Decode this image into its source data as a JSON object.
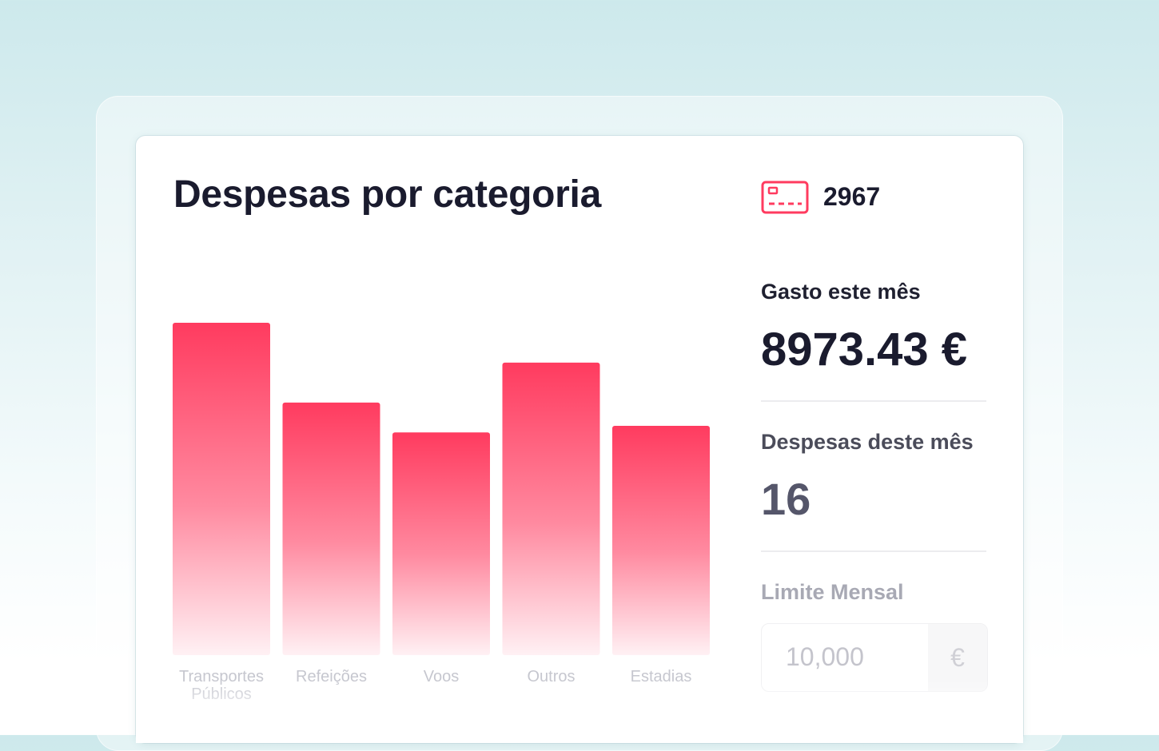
{
  "widget": {
    "title": "Despesas por categoria"
  },
  "cards": {
    "icon": "credit-card-icon",
    "count": "2967"
  },
  "stats": {
    "spent_label": "Gasto este mês",
    "spent_value": "8973.43 €",
    "expenses_label": "Despesas deste mês",
    "expenses_value": "16",
    "limit_label": "Limite Mensal",
    "limit_value": "10,000",
    "limit_currency": "€"
  },
  "colors": {
    "accent": "#ff3b5f",
    "accent_light": "#ffe9ee",
    "text_dark": "#1a1b2e"
  },
  "chart_data": {
    "type": "bar",
    "categories": [
      [
        "Transportes",
        "Públicos"
      ],
      [
        "Refeições"
      ],
      [
        "Voos"
      ],
      [
        "Outros"
      ],
      [
        "Estadias"
      ]
    ],
    "values": [
      100,
      76,
      67,
      88,
      69
    ],
    "title": "",
    "xlabel": "",
    "ylabel": "",
    "ylim": [
      0,
      100
    ],
    "grid": false,
    "legend": "none"
  }
}
